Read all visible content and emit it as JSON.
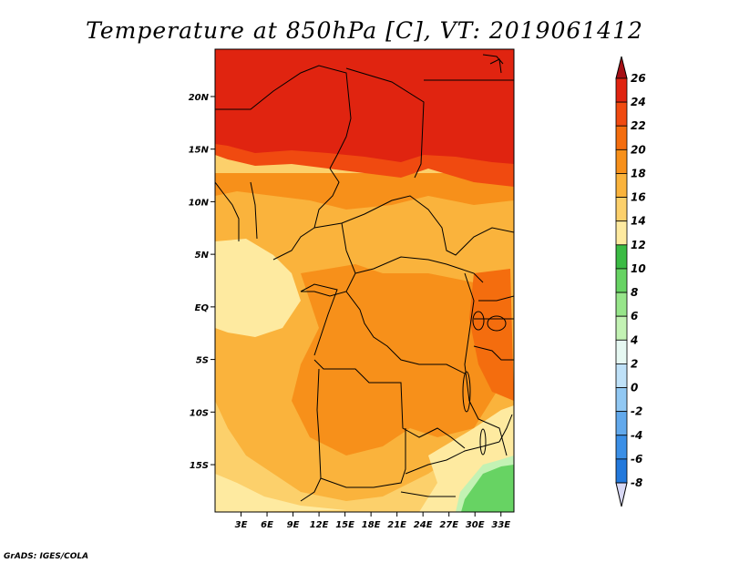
{
  "title": "Temperature at 850hPa [C], VT: 2019061412",
  "credit": "GrADS: IGES/COLA",
  "map": {
    "lon_range": [
      0,
      34.5
    ],
    "lat_range": [
      -19.5,
      24.5
    ],
    "lon_ticks": [
      {
        "value": 3,
        "label": "3E"
      },
      {
        "value": 6,
        "label": "6E"
      },
      {
        "value": 9,
        "label": "9E"
      },
      {
        "value": 12,
        "label": "12E"
      },
      {
        "value": 15,
        "label": "15E"
      },
      {
        "value": 18,
        "label": "18E"
      },
      {
        "value": 21,
        "label": "21E"
      },
      {
        "value": 24,
        "label": "24E"
      },
      {
        "value": 27,
        "label": "27E"
      },
      {
        "value": 30,
        "label": "30E"
      },
      {
        "value": 33,
        "label": "33E"
      }
    ],
    "lat_ticks": [
      {
        "value": 20,
        "label": "20N"
      },
      {
        "value": 15,
        "label": "15N"
      },
      {
        "value": 10,
        "label": "10N"
      },
      {
        "value": 5,
        "label": "5N"
      },
      {
        "value": 0,
        "label": "EQ"
      },
      {
        "value": -5,
        "label": "5S"
      },
      {
        "value": -10,
        "label": "10S"
      },
      {
        "value": -15,
        "label": "15S"
      }
    ]
  },
  "colorbar": {
    "labels": [
      "26",
      "24",
      "22",
      "20",
      "18",
      "16",
      "14",
      "12",
      "10",
      "8",
      "6",
      "4",
      "2",
      "0",
      "-2",
      "-4",
      "-6",
      "-8"
    ],
    "colors": [
      "#a50f15",
      "#e02410",
      "#f04a10",
      "#f46d0e",
      "#f7901a",
      "#fab33c",
      "#fcd06b",
      "#feeaa0",
      "#3bbb44",
      "#67d363",
      "#97e58a",
      "#c3f2b4",
      "#e6f8f2",
      "#bfe1f8",
      "#91c8f3",
      "#62a9ec",
      "#3b8fe6",
      "#2379dc",
      "#145fc8",
      "#0a48b0",
      "#082a8c",
      "#d8d8f4"
    ]
  }
}
